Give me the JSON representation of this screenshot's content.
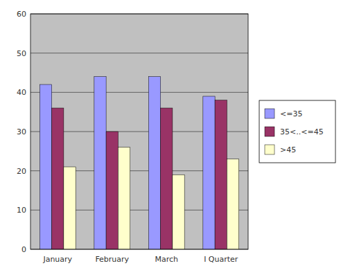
{
  "chart_data": {
    "type": "bar",
    "categories": [
      "January",
      "February",
      "March",
      "I Quarter"
    ],
    "series": [
      {
        "name": "<=35",
        "color": "#9999FF",
        "values": [
          42,
          44,
          44,
          39
        ]
      },
      {
        "name": "35<..<=45",
        "color": "#993366",
        "values": [
          36,
          30,
          36,
          38
        ]
      },
      {
        "name": ">45",
        "color": "#FFFFCC",
        "values": [
          21,
          26,
          19,
          23
        ]
      }
    ],
    "ylim": [
      0,
      60
    ],
    "yticks": [
      0,
      10,
      20,
      30,
      40,
      50,
      60
    ],
    "grid": true,
    "legend": "right"
  }
}
